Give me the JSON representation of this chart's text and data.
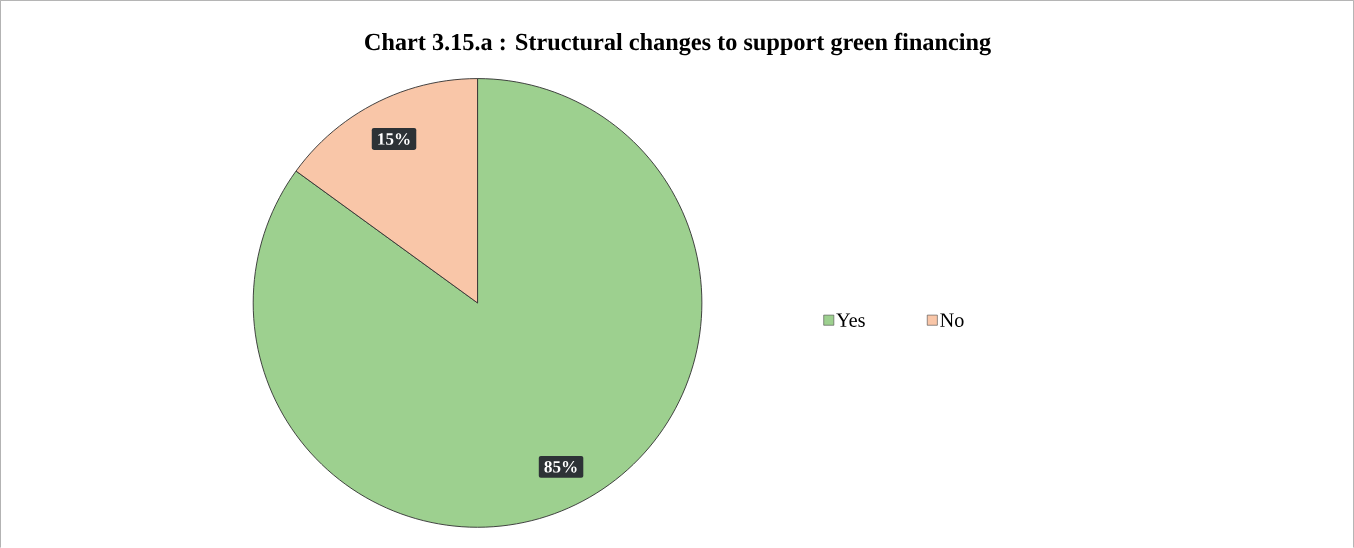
{
  "chart_data": {
    "type": "pie",
    "title": "Chart 3.15.a : Structural changes to support green financing",
    "categories": [
      "Yes",
      "No"
    ],
    "values": [
      85,
      15
    ],
    "colors": [
      "#9dd08f",
      "#f9c6a8"
    ],
    "value_labels": [
      "85%",
      "15%"
    ],
    "legend": "right"
  }
}
